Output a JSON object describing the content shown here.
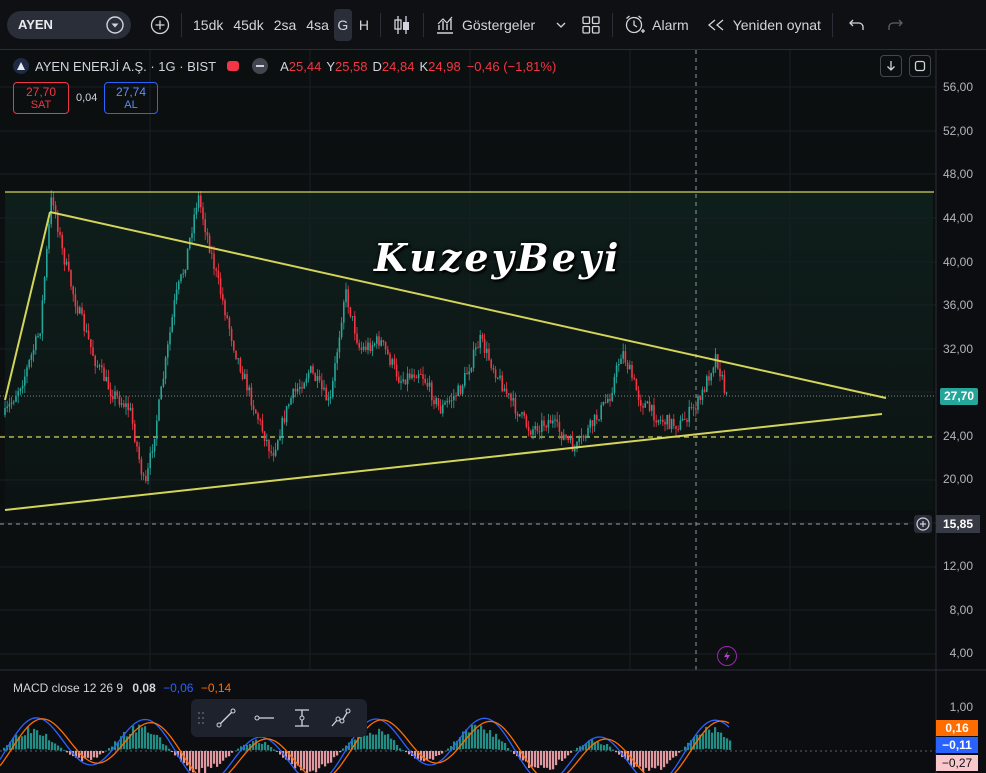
{
  "toolbar": {
    "symbol": "AYEN",
    "intervals": [
      "15dk",
      "45dk",
      "2sa",
      "4sa",
      "G",
      "H"
    ],
    "active_interval": "G",
    "indicators_label": "Göstergeler",
    "alarm_label": "Alarm",
    "replay_label": "Yeniden oynat"
  },
  "legend": {
    "title": "AYEN ENERJİ A.Ş. · 1G · BIST",
    "open_label": "A",
    "open": "25,44",
    "high_label": "Y",
    "high": "25,58",
    "low_label": "D",
    "low": "24,84",
    "close_label": "K",
    "close": "24,98",
    "change": "−0,46 (−1,81%)"
  },
  "trade": {
    "sell_price": "27,70",
    "sell_label": "SAT",
    "spread": "0,04",
    "buy_price": "27,74",
    "buy_label": "AL"
  },
  "price_axis": {
    "ticks": [
      "56,00",
      "52,00",
      "48,00",
      "44,00",
      "40,00",
      "36,00",
      "32,00",
      "28,00",
      "24,00",
      "20,00",
      "16,00",
      "12,00",
      "8,00",
      "4,00"
    ],
    "current_price": "27,70",
    "crosshair_price": "15,85"
  },
  "watermark": "KuzeyBeyi",
  "macd": {
    "label": "MACD close 12 26 9",
    "histogram": "0,08",
    "macd": "−0,06",
    "signal": "−0,14",
    "axis_tick": "1,00",
    "badge_signal": "0,16",
    "badge_macd": "−0,11",
    "badge_hist": "−0,27"
  },
  "colors": {
    "up": "#26a69a",
    "down": "#f23645",
    "trendline": "#d4d45a",
    "macd_line": "#2962ff",
    "signal_line": "#ff6d00",
    "background": "#0c0d10"
  }
}
